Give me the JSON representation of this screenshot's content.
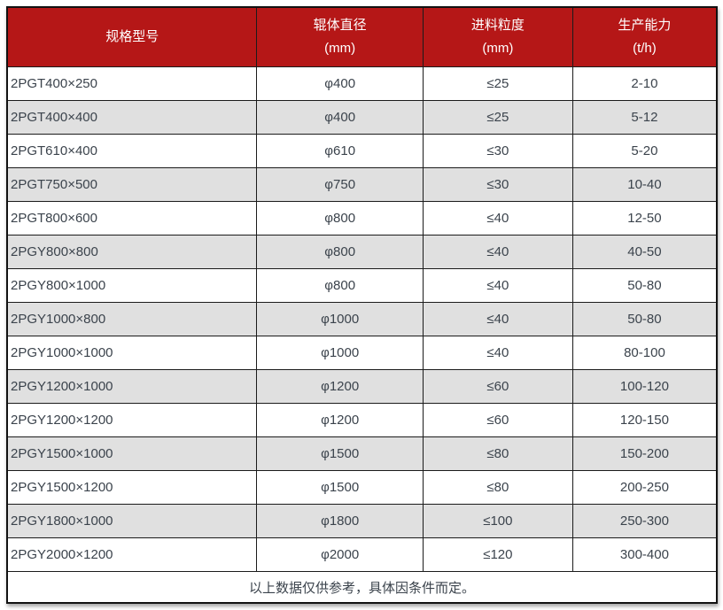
{
  "chart_data": {
    "type": "table",
    "columns": [
      {
        "label": "规格型号",
        "unit": ""
      },
      {
        "label": "辊体直径",
        "unit": "(mm)"
      },
      {
        "label": "进料粒度",
        "unit": "(mm)"
      },
      {
        "label": "生产能力",
        "unit": "(t/h)"
      }
    ],
    "rows": [
      [
        "2PGT400×250",
        "φ400",
        "≤25",
        "2-10"
      ],
      [
        "2PGT400×400",
        "φ400",
        "≤25",
        "5-12"
      ],
      [
        "2PGT610×400",
        "φ610",
        "≤30",
        "5-20"
      ],
      [
        "2PGT750×500",
        "φ750",
        "≤30",
        "10-40"
      ],
      [
        "2PGT800×600",
        "φ800",
        "≤40",
        "12-50"
      ],
      [
        "2PGY800×800",
        "φ800",
        "≤40",
        "40-50"
      ],
      [
        "2PGY800×1000",
        "φ800",
        "≤40",
        "50-80"
      ],
      [
        "2PGY1000×800",
        "φ1000",
        "≤40",
        "50-80"
      ],
      [
        "2PGY1000×1000",
        "φ1000",
        "≤40",
        "80-100"
      ],
      [
        "2PGY1200×1000",
        "φ1200",
        "≤60",
        "100-120"
      ],
      [
        "2PGY1200×1200",
        "φ1200",
        "≤60",
        "120-150"
      ],
      [
        "2PGY1500×1000",
        "φ1500",
        "≤80",
        "150-200"
      ],
      [
        "2PGY1500×1200",
        "φ1500",
        "≤80",
        "200-250"
      ],
      [
        "2PGY1800×1000",
        "φ1800",
        "≤100",
        "250-300"
      ],
      [
        "2PGY2000×1200",
        "φ2000",
        "≤120",
        "300-400"
      ]
    ],
    "footnote": "以上数据仅供参考，具体因条件而定。",
    "layout": {
      "column_widths_pct": [
        35.2,
        23.4,
        21.1,
        20.3
      ],
      "zebra_striping": true,
      "grid": true
    }
  },
  "colors": {
    "header_bg": "#b51717",
    "header_text": "#ffffff",
    "row_bg": "#ffffff",
    "row_alt_bg": "#e0e0e0",
    "body_text": "#3b434c",
    "border": "#1b1b1b"
  }
}
